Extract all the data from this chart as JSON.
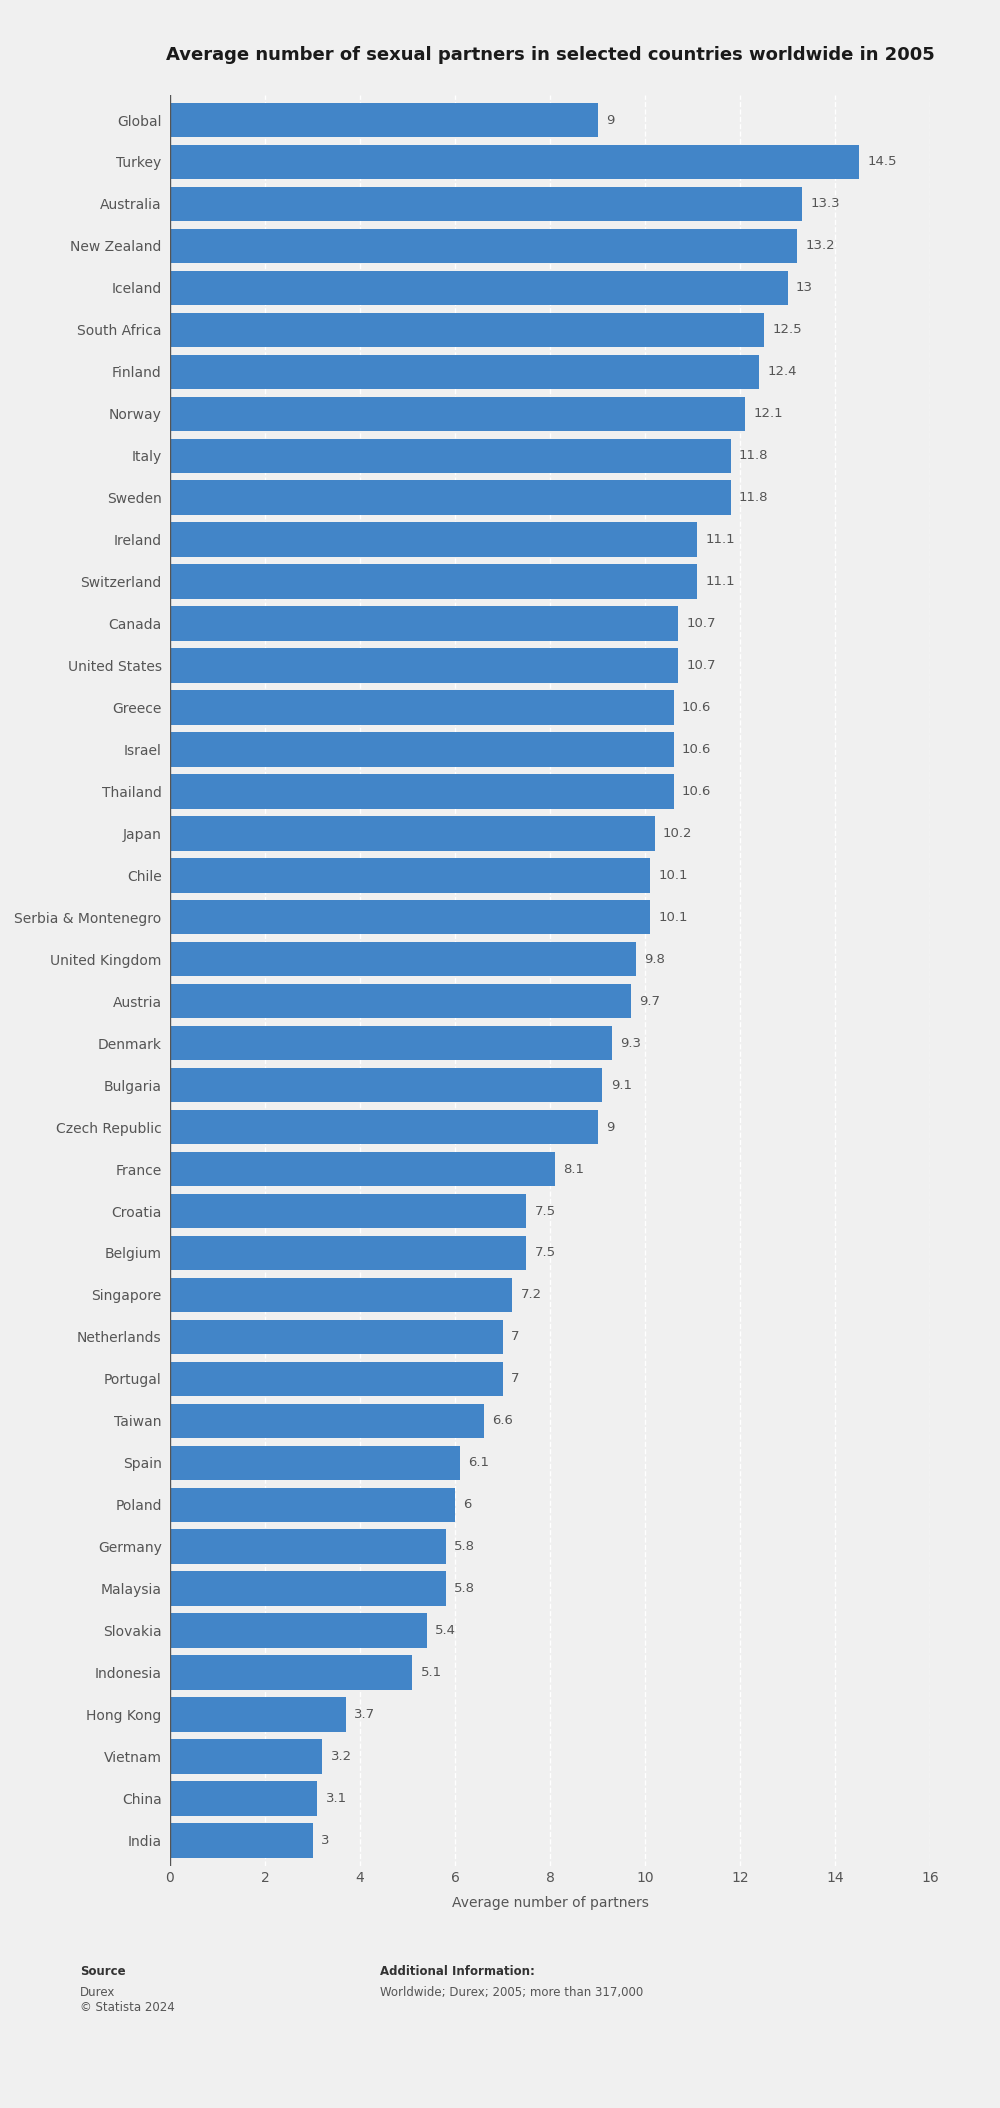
{
  "title": "Average number of sexual partners in selected countries worldwide in 2005",
  "xlabel": "Average number of partners",
  "categories": [
    "Global",
    "Turkey",
    "Australia",
    "New Zealand",
    "Iceland",
    "South Africa",
    "Finland",
    "Norway",
    "Italy",
    "Sweden",
    "Ireland",
    "Switzerland",
    "Canada",
    "United States",
    "Greece",
    "Israel",
    "Thailand",
    "Japan",
    "Chile",
    "Serbia & Montenegro",
    "United Kingdom",
    "Austria",
    "Denmark",
    "Bulgaria",
    "Czech Republic",
    "France",
    "Croatia",
    "Belgium",
    "Singapore",
    "Netherlands",
    "Portugal",
    "Taiwan",
    "Spain",
    "Poland",
    "Germany",
    "Malaysia",
    "Slovakia",
    "Indonesia",
    "Hong Kong",
    "Vietnam",
    "China",
    "India"
  ],
  "values": [
    9,
    14.5,
    13.3,
    13.2,
    13,
    12.5,
    12.4,
    12.1,
    11.8,
    11.8,
    11.1,
    11.1,
    10.7,
    10.7,
    10.6,
    10.6,
    10.6,
    10.2,
    10.1,
    10.1,
    9.8,
    9.7,
    9.3,
    9.1,
    9,
    8.1,
    7.5,
    7.5,
    7.2,
    7,
    7,
    6.6,
    6.1,
    6,
    5.8,
    5.8,
    5.4,
    5.1,
    3.7,
    3.2,
    3.1,
    3
  ],
  "bar_color": "#4285c8",
  "background_color": "#f0f0f0",
  "plot_background_color": "#f0f0f0",
  "title_fontsize": 13,
  "label_fontsize": 10,
  "value_fontsize": 9.5,
  "axis_label_fontsize": 10,
  "footer_fontsize": 8.5,
  "xlim": [
    0,
    16
  ],
  "xticks": [
    0,
    2,
    4,
    6,
    8,
    10,
    12,
    14,
    16
  ],
  "source_label": "Source",
  "source_body": "Durex\n© Statista 2024",
  "additional_label": "Additional Information:",
  "additional_body": "Worldwide; Durex; 2005; more than 317,000"
}
